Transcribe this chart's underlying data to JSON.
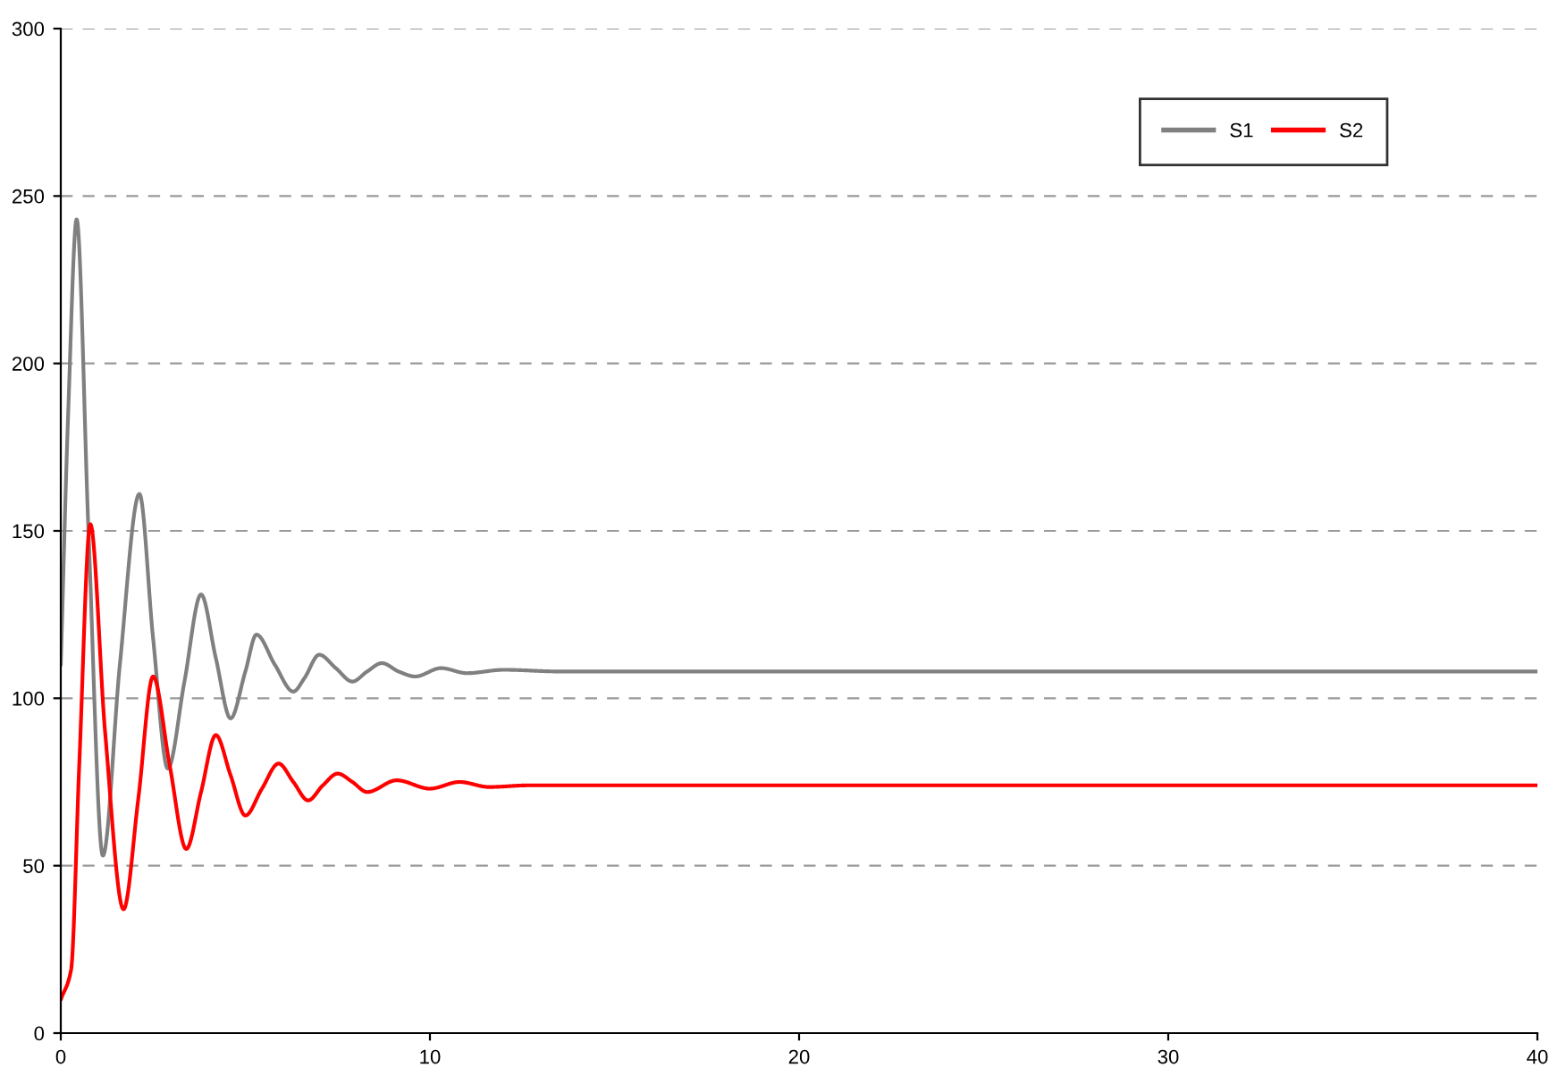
{
  "chart_data": {
    "type": "line",
    "xlim": [
      0,
      40
    ],
    "xticks": [
      0,
      10,
      20,
      30,
      40
    ],
    "ylim": [
      0,
      300
    ],
    "yticks": [
      0,
      50,
      100,
      150,
      200,
      250,
      300
    ],
    "grid": "y",
    "legend": "top right",
    "line_style": "solid",
    "marker": "none",
    "series": [
      {
        "name": "S1",
        "color": "#808080",
        "x": [
          0,
          0.2,
          0.43,
          0.75,
          1.14,
          1.6,
          2.13,
          2.5,
          2.9,
          3.35,
          3.8,
          4.2,
          4.6,
          5.0,
          5.3,
          5.8,
          6.3,
          6.6,
          7.0,
          7.45,
          7.9,
          8.3,
          8.7,
          9.15,
          9.6,
          10.3,
          11.0,
          12.0,
          13.5,
          20,
          30,
          40
        ],
        "values": [
          110,
          185,
          243,
          150,
          53,
          110,
          161,
          118,
          79,
          105,
          131,
          112,
          94,
          108,
          119,
          110,
          102,
          106,
          113,
          109,
          105,
          108,
          110.5,
          108,
          106.5,
          109,
          107.5,
          108.5,
          108,
          108,
          108,
          108
        ]
      },
      {
        "name": "S2",
        "color": "#ff0000",
        "x": [
          0,
          0.28,
          0.5,
          0.8,
          1.2,
          1.7,
          2.1,
          2.5,
          2.95,
          3.4,
          3.8,
          4.2,
          4.6,
          5.0,
          5.45,
          5.9,
          6.3,
          6.7,
          7.1,
          7.5,
          7.9,
          8.3,
          9.1,
          10.0,
          10.8,
          11.6,
          12.7,
          20,
          30,
          40
        ],
        "values": [
          10,
          19,
          80,
          152,
          90,
          37,
          70,
          106.5,
          80,
          55,
          72,
          89,
          77,
          65,
          73,
          80.5,
          75,
          69.5,
          74,
          77.5,
          75,
          72,
          75.5,
          73,
          75,
          73.5,
          74,
          74,
          74,
          74
        ]
      }
    ]
  }
}
